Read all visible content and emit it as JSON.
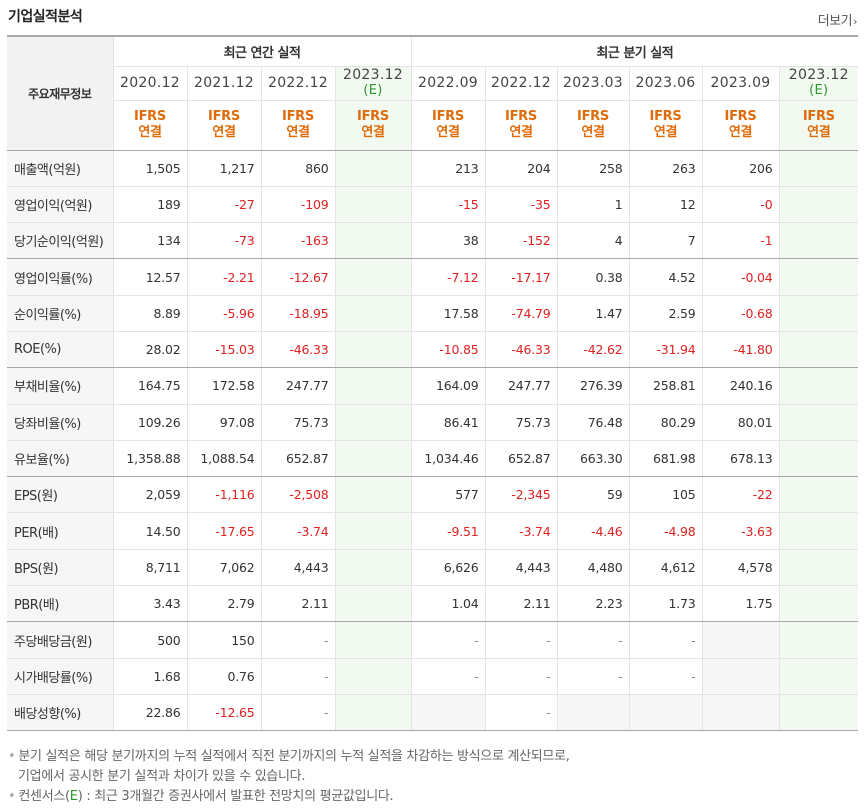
{
  "section": {
    "title": "기업실적분석",
    "more": "더보기"
  },
  "header": {
    "row_head": "주요재무정보",
    "group_annual": "최근 연간 실적",
    "group_quarter": "최근 분기 실적",
    "periods": [
      {
        "label": "2020.12",
        "est": false
      },
      {
        "label": "2021.12",
        "est": false
      },
      {
        "label": "2022.12",
        "est": false
      },
      {
        "label": "2023.12",
        "est": true
      },
      {
        "label": "2022.09",
        "est": false
      },
      {
        "label": "2022.12",
        "est": false
      },
      {
        "label": "2023.03",
        "est": false
      },
      {
        "label": "2023.06",
        "est": false
      },
      {
        "label": "2023.09",
        "est": false
      },
      {
        "label": "2023.12",
        "est": true
      }
    ],
    "est_mark": "(E)",
    "ifrs_top": "IFRS",
    "ifrs_bottom": "연결"
  },
  "rows": [
    {
      "label": "매출액(억원)",
      "values": [
        "1,505",
        "1,217",
        "860",
        "",
        "213",
        "204",
        "258",
        "263",
        "206",
        ""
      ]
    },
    {
      "label": "영업이익(억원)",
      "values": [
        "189",
        "-27",
        "-109",
        "",
        "-15",
        "-35",
        "1",
        "12",
        "-0",
        ""
      ]
    },
    {
      "label": "당기순이익(억원)",
      "values": [
        "134",
        "-73",
        "-163",
        "",
        "38",
        "-152",
        "4",
        "7",
        "-1",
        ""
      ],
      "group_end": true
    },
    {
      "label": "영업이익률(%)",
      "values": [
        "12.57",
        "-2.21",
        "-12.67",
        "",
        "-7.12",
        "-17.17",
        "0.38",
        "4.52",
        "-0.04",
        ""
      ]
    },
    {
      "label": "순이익률(%)",
      "values": [
        "8.89",
        "-5.96",
        "-18.95",
        "",
        "17.58",
        "-74.79",
        "1.47",
        "2.59",
        "-0.68",
        ""
      ]
    },
    {
      "label": "ROE(%)",
      "values": [
        "28.02",
        "-15.03",
        "-46.33",
        "",
        "-10.85",
        "-46.33",
        "-42.62",
        "-31.94",
        "-41.80",
        ""
      ],
      "group_end": true
    },
    {
      "label": "부채비율(%)",
      "values": [
        "164.75",
        "172.58",
        "247.77",
        "",
        "164.09",
        "247.77",
        "276.39",
        "258.81",
        "240.16",
        ""
      ]
    },
    {
      "label": "당좌비율(%)",
      "values": [
        "109.26",
        "97.08",
        "75.73",
        "",
        "86.41",
        "75.73",
        "76.48",
        "80.29",
        "80.01",
        ""
      ]
    },
    {
      "label": "유보율(%)",
      "values": [
        "1,358.88",
        "1,088.54",
        "652.87",
        "",
        "1,034.46",
        "652.87",
        "663.30",
        "681.98",
        "678.13",
        ""
      ],
      "group_end": true
    },
    {
      "label": "EPS(원)",
      "values": [
        "2,059",
        "-1,116",
        "-2,508",
        "",
        "577",
        "-2,345",
        "59",
        "105",
        "-22",
        ""
      ]
    },
    {
      "label": "PER(배)",
      "values": [
        "14.50",
        "-17.65",
        "-3.74",
        "",
        "-9.51",
        "-3.74",
        "-4.46",
        "-4.98",
        "-3.63",
        ""
      ]
    },
    {
      "label": "BPS(원)",
      "values": [
        "8,711",
        "7,062",
        "4,443",
        "",
        "6,626",
        "4,443",
        "4,480",
        "4,612",
        "4,578",
        ""
      ]
    },
    {
      "label": "PBR(배)",
      "values": [
        "3.43",
        "2.79",
        "2.11",
        "",
        "1.04",
        "2.11",
        "2.23",
        "1.73",
        "1.75",
        ""
      ],
      "group_end": true
    },
    {
      "label": "주당배당금(원)",
      "values": [
        "500",
        "150",
        "-",
        "",
        "-",
        "-",
        "-",
        "-",
        "#",
        ""
      ]
    },
    {
      "label": "시가배당률(%)",
      "values": [
        "1.68",
        "0.76",
        "-",
        "",
        "-",
        "-",
        "-",
        "-",
        "#",
        ""
      ]
    },
    {
      "label": "배당성향(%)",
      "values": [
        "22.86",
        "-12.65",
        "-",
        "",
        "#",
        "-",
        "#",
        "#",
        "#",
        ""
      ]
    }
  ],
  "notes": [
    "분기 실적은 해당 분기까지의 누적 실적에서 직전 분기까지의 누적 실적을 차감하는 방식으로 계산되므로,",
    "기업에서 공시한 분기 실적과 차이가 있을 수 있습니다."
  ],
  "consensus_note": {
    "prefix": "컨센서스(",
    "mark": "E",
    "suffix": ") : 최근 3개월간 증권사에서 발표한 전망치의 평균값입니다."
  },
  "colors": {
    "negative": "#e02020",
    "ifrs": "#e06b0a",
    "estimate_bg": "#f1f9f1",
    "estimate_mark": "#2e9a2e"
  }
}
